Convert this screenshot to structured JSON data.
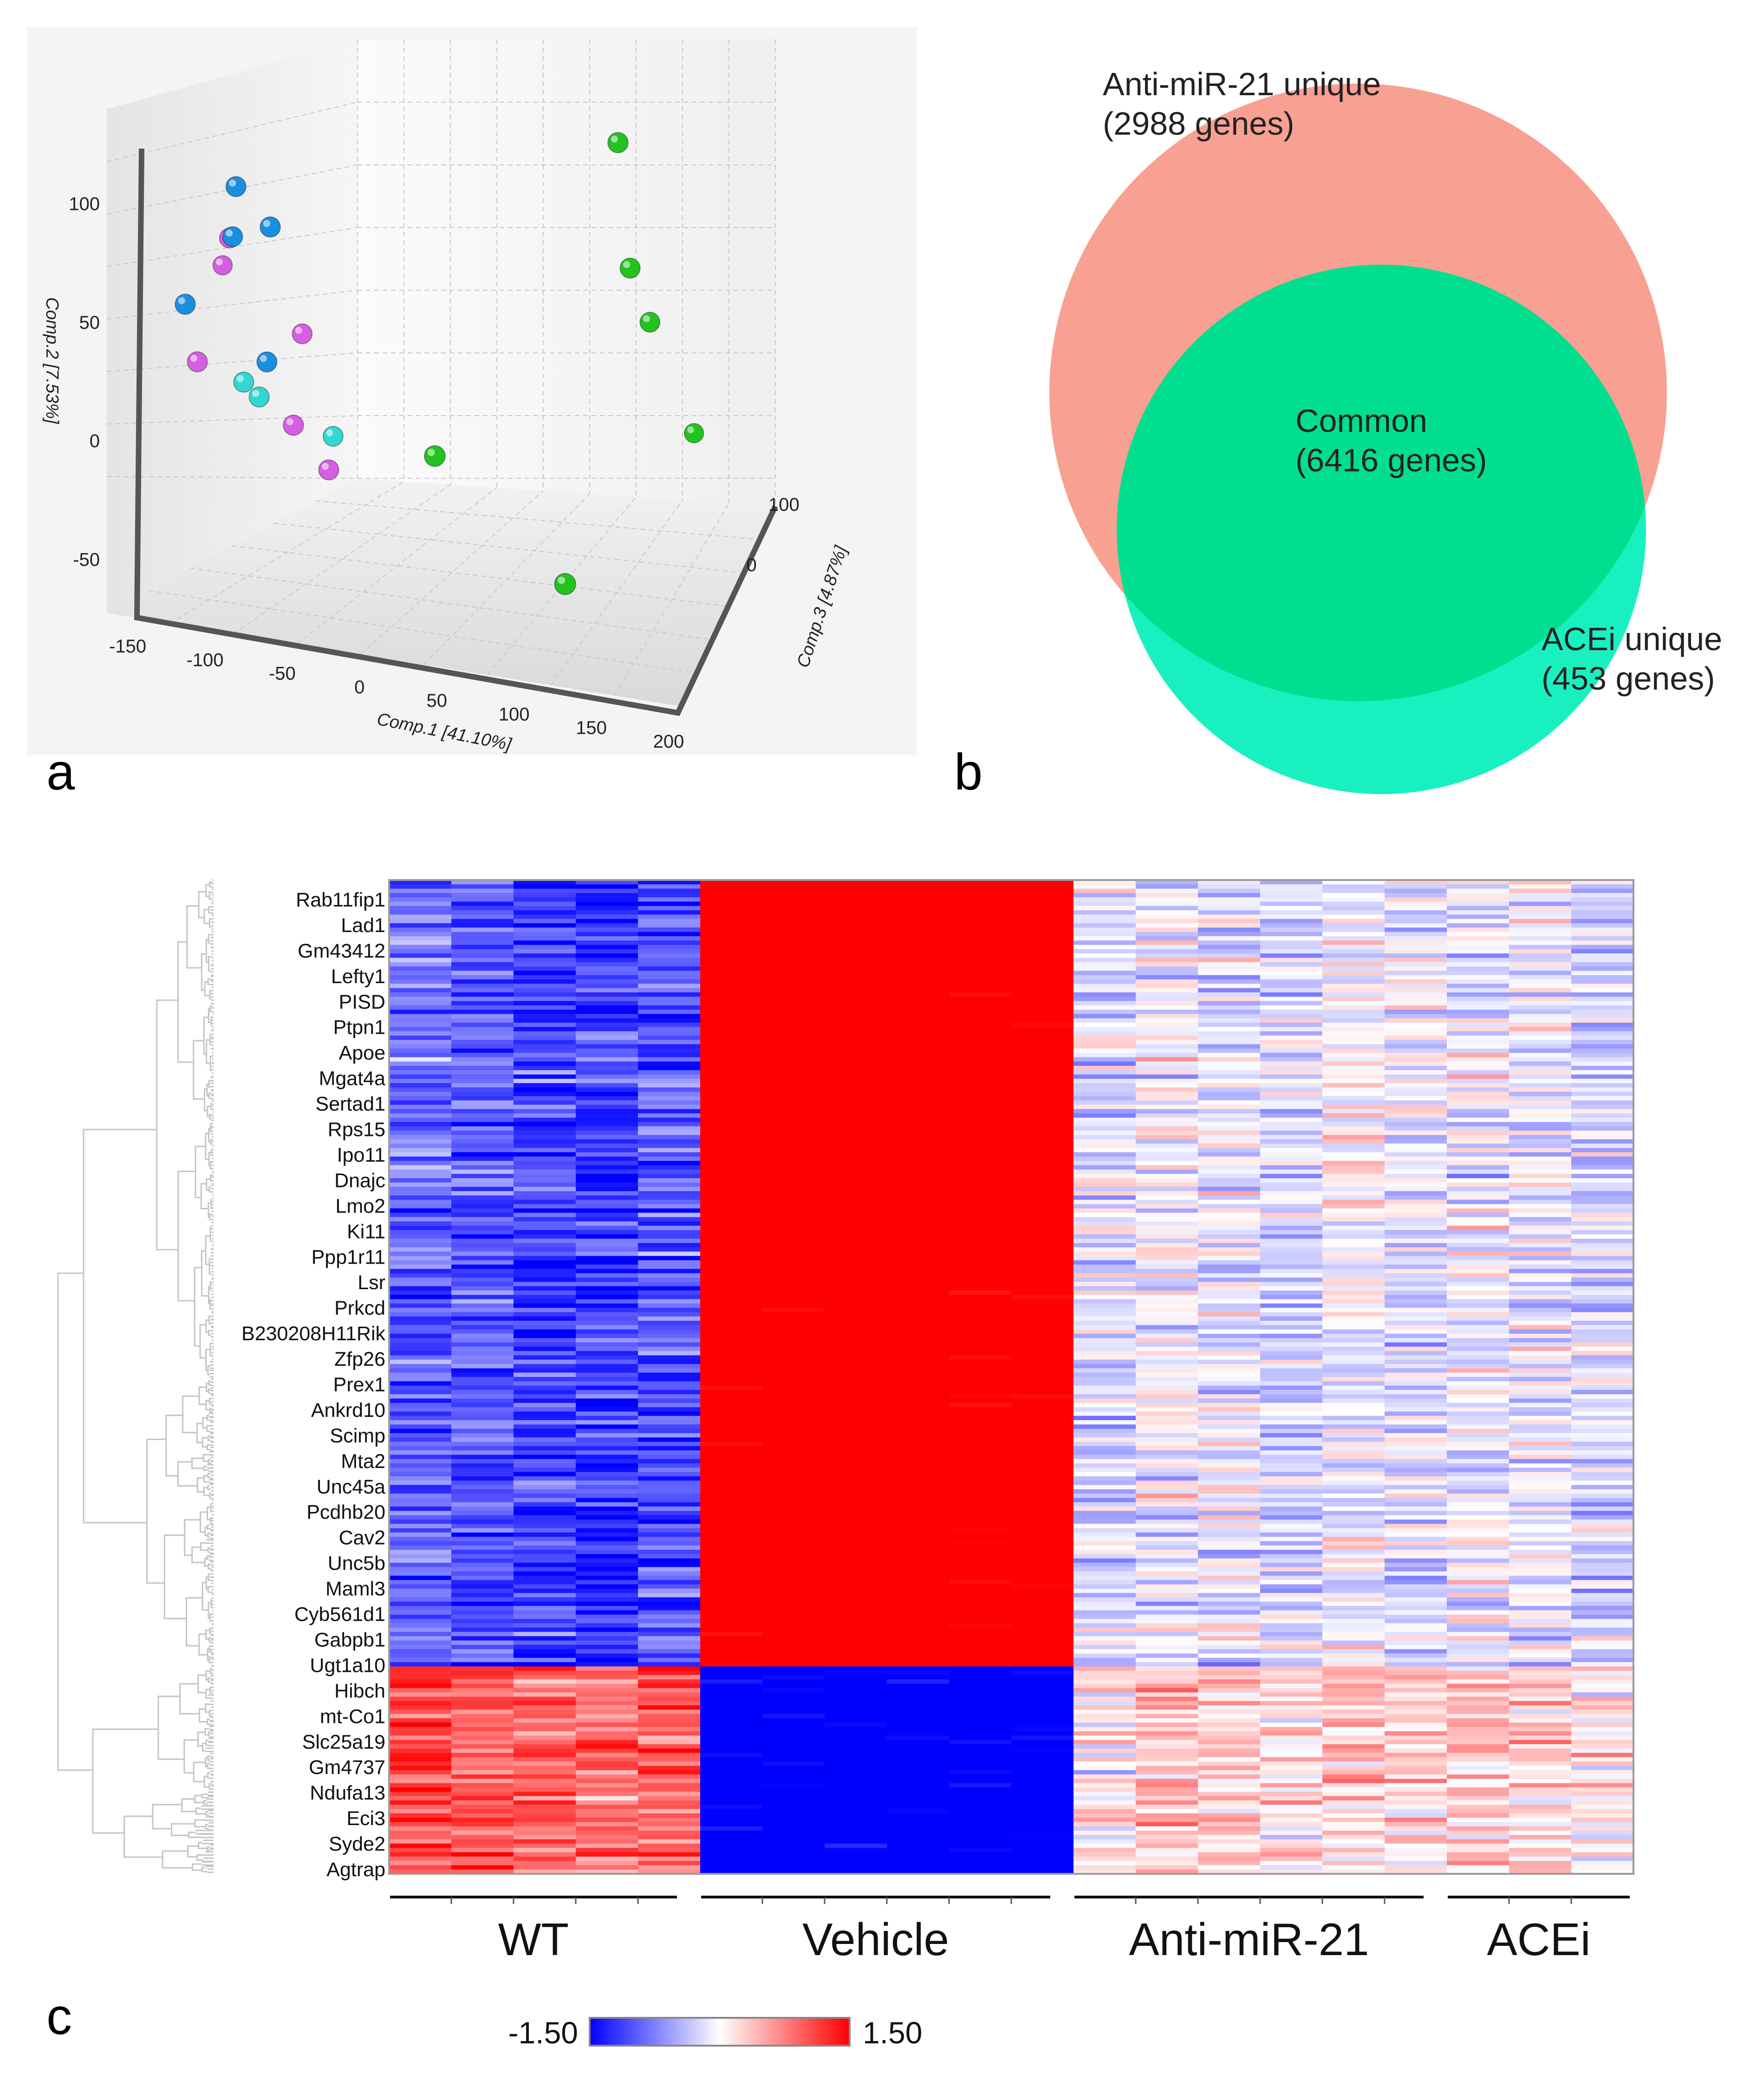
{
  "panels": {
    "a": "a",
    "b": "b",
    "c": "c"
  },
  "colors": {
    "wt": "#1a8fe0",
    "vehicle": "#22c21f",
    "anti_mir21": "#d45fe0",
    "acei": "#33d6d0",
    "anti_unique": "#f8a091",
    "common": "#00df8f",
    "acei_unique": "#19f0c0",
    "heat_low": "#0000ff",
    "heat_mid": "#ffffff",
    "heat_high": "#ff0000"
  },
  "chart_data": [
    {
      "id": "a",
      "type": "scatter3d",
      "xlabel": "Comp.1 [41.10%]",
      "ylabel": "Comp.2 [7.53%]",
      "zlabel": "Comp.3 [4.87%]",
      "x_ticks": [
        -150,
        -100,
        -50,
        0,
        50,
        100,
        150,
        200
      ],
      "y_ticks": [
        100,
        50,
        0,
        -50
      ],
      "z_ticks": [
        100,
        0
      ],
      "xlim": [
        -150,
        200
      ],
      "ylim": [
        -75,
        125
      ],
      "zlim": [
        -100,
        100
      ],
      "series": [
        {
          "name": "WT",
          "color_key": "wt",
          "points": [
            [
              -120,
              60,
              20
            ],
            [
              -95,
              50,
              10
            ],
            [
              -125,
              35,
              30
            ],
            [
              -150,
              12,
              10
            ],
            [
              -100,
              -10,
              20
            ]
          ]
        },
        {
          "name": "Vehicle",
          "color_key": "vehicle",
          "points": [
            [
              130,
              110,
              10
            ],
            [
              135,
              55,
              20
            ],
            [
              145,
              30,
              30
            ],
            [
              20,
              -20,
              -20
            ],
            [
              165,
              -25,
              60
            ],
            [
              110,
              -55,
              -40
            ]
          ]
        },
        {
          "name": "Anti-miR-21",
          "color_key": "anti_mir21",
          "points": [
            [
              -130,
              30,
              40
            ],
            [
              -140,
              10,
              60
            ],
            [
              -80,
              0,
              30
            ],
            [
              -145,
              -15,
              20
            ],
            [
              -80,
              -30,
              10
            ],
            [
              -60,
              -50,
              20
            ]
          ]
        },
        {
          "name": "ACEi",
          "color_key": "acei",
          "points": [
            [
              -115,
              -20,
              20
            ],
            [
              -105,
              -25,
              20
            ],
            [
              -60,
              -40,
              30
            ]
          ]
        }
      ]
    },
    {
      "id": "b",
      "type": "venn",
      "sets": [
        {
          "label": "Anti-miR-21 unique",
          "count_text": "(2988 genes)",
          "value": 2988
        },
        {
          "label": "Common",
          "count_text": "(6416 genes)",
          "value": 6416
        },
        {
          "label": "ACEi unique",
          "count_text": "(453 genes)",
          "value": 453
        }
      ]
    },
    {
      "id": "c",
      "type": "heatmap",
      "scale_min": -1.5,
      "scale_max": 1.5,
      "scale_min_label": "-1.50",
      "scale_max_label": "1.50",
      "groups": [
        {
          "name": "WT",
          "n": 5
        },
        {
          "name": "Vehicle",
          "n": 6
        },
        {
          "name": "Anti-miR-21",
          "n": 6
        },
        {
          "name": "ACEi",
          "n": 3
        }
      ],
      "cluster_split": 0.79,
      "genes": [
        "Rab11fip1",
        "Lad1",
        "Gm43412",
        "Lefty1",
        "PISD",
        "Ptpn1",
        "Apoe",
        "Mgat4a",
        "Sertad1",
        "Rps15",
        "Ipo11",
        "Dnajc",
        "Lmo2",
        "Ki11",
        "Ppp1r11",
        "Lsr",
        "Prkcd",
        "B230208H11Rik",
        "Zfp26",
        "Prex1",
        "Ankrd10",
        "Scimp",
        "Mta2",
        "Unc45a",
        "Pcdhb20",
        "Cav2",
        "Unc5b",
        "Maml3",
        "Cyb561d1",
        "Gabpb1",
        "Ugt1a10",
        "Hibch",
        "mt-Co1",
        "Slc25a19",
        "Gm4737",
        "Ndufa13",
        "Eci3",
        "Syde2",
        "Agtrap"
      ]
    }
  ]
}
